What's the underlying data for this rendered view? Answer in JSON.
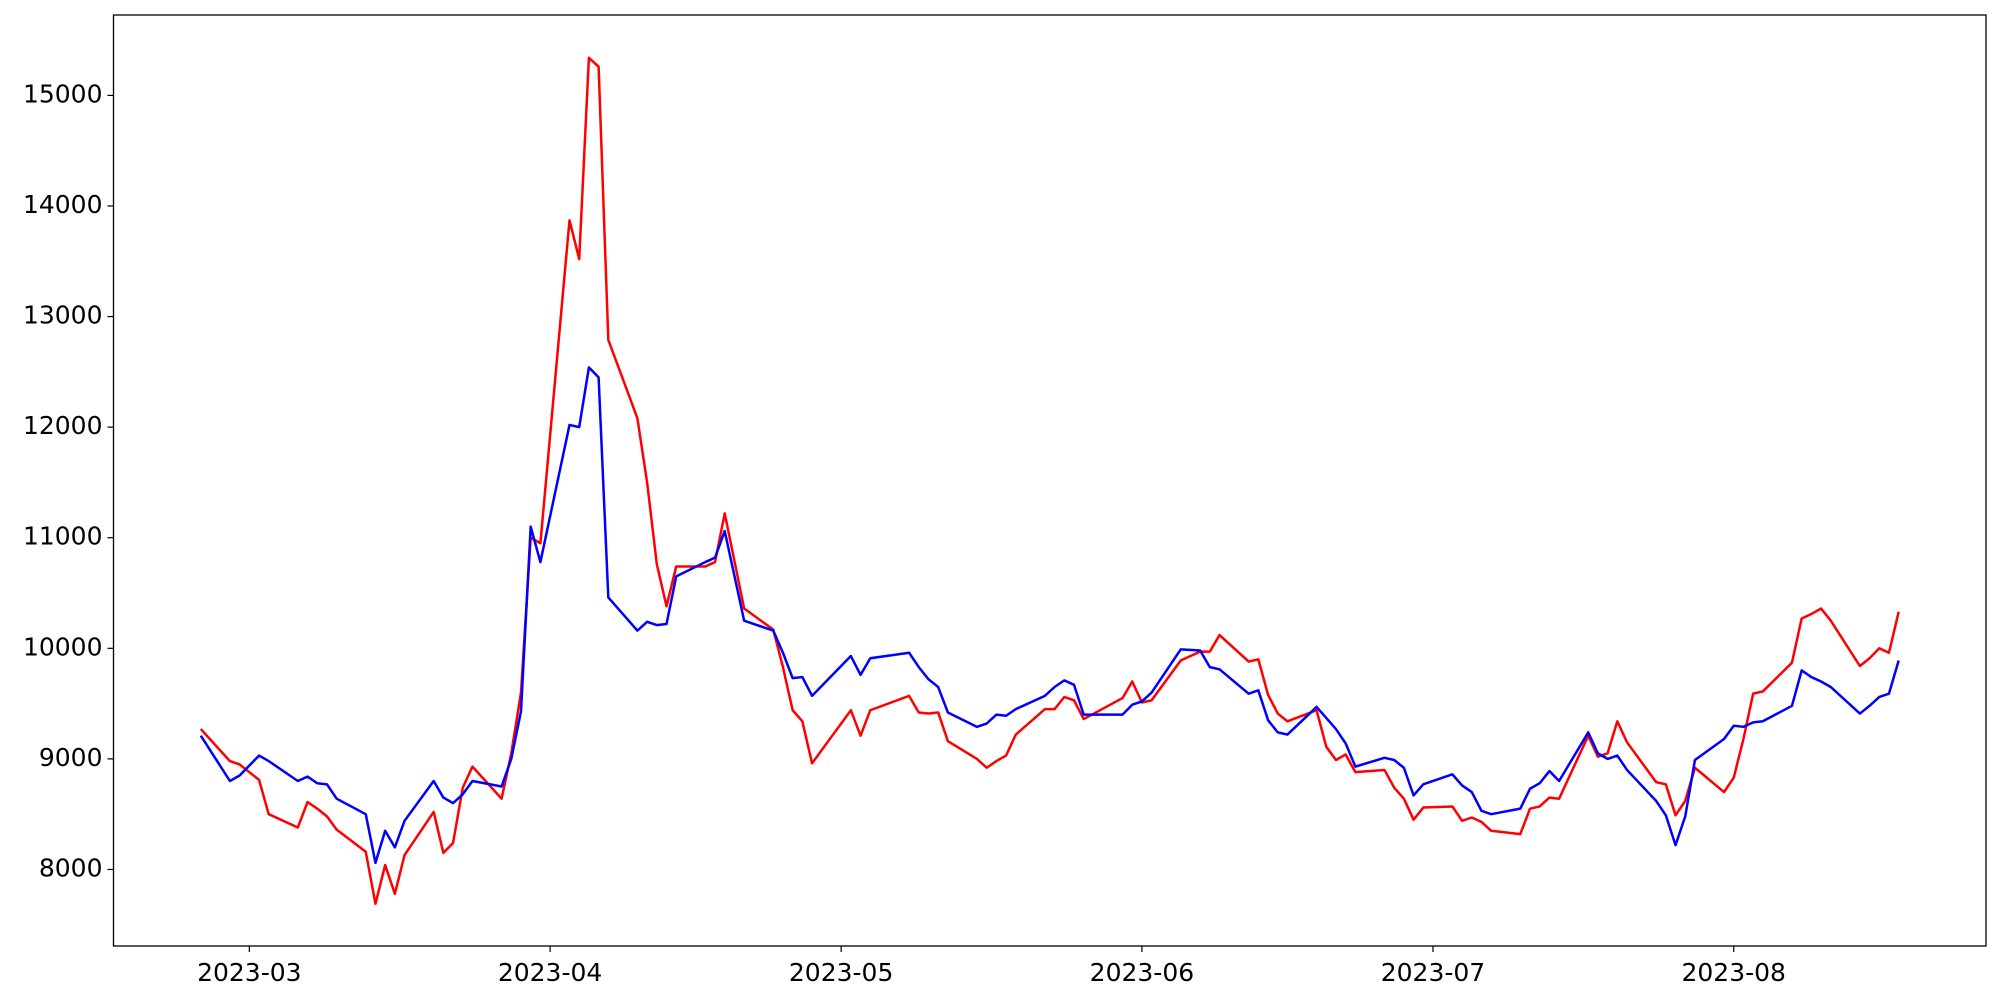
{
  "chart_data": {
    "type": "line",
    "x": [
      "2023-02-24",
      "2023-02-27",
      "2023-02-28",
      "2023-03-02",
      "2023-03-03",
      "2023-03-06",
      "2023-03-07",
      "2023-03-08",
      "2023-03-09",
      "2023-03-10",
      "2023-03-13",
      "2023-03-14",
      "2023-03-15",
      "2023-03-16",
      "2023-03-17",
      "2023-03-20",
      "2023-03-21",
      "2023-03-22",
      "2023-03-23",
      "2023-03-24",
      "2023-03-27",
      "2023-03-28",
      "2023-03-29",
      "2023-03-30",
      "2023-03-31",
      "2023-04-03",
      "2023-04-04",
      "2023-04-05",
      "2023-04-06",
      "2023-04-07",
      "2023-04-10",
      "2023-04-11",
      "2023-04-12",
      "2023-04-13",
      "2023-04-14",
      "2023-04-17",
      "2023-04-18",
      "2023-04-19",
      "2023-04-21",
      "2023-04-24",
      "2023-04-25",
      "2023-04-26",
      "2023-04-27",
      "2023-04-28",
      "2023-05-02",
      "2023-05-03",
      "2023-05-04",
      "2023-05-08",
      "2023-05-09",
      "2023-05-10",
      "2023-05-11",
      "2023-05-12",
      "2023-05-15",
      "2023-05-16",
      "2023-05-17",
      "2023-05-18",
      "2023-05-19",
      "2023-05-22",
      "2023-05-23",
      "2023-05-24",
      "2023-05-25",
      "2023-05-26",
      "2023-05-30",
      "2023-05-31",
      "2023-06-01",
      "2023-06-02",
      "2023-06-05",
      "2023-06-07",
      "2023-06-08",
      "2023-06-09",
      "2023-06-12",
      "2023-06-13",
      "2023-06-14",
      "2023-06-15",
      "2023-06-16",
      "2023-06-19",
      "2023-06-20",
      "2023-06-21",
      "2023-06-22",
      "2023-06-23",
      "2023-06-26",
      "2023-06-27",
      "2023-06-28",
      "2023-06-29",
      "2023-06-30",
      "2023-07-03",
      "2023-07-04",
      "2023-07-05",
      "2023-07-06",
      "2023-07-07",
      "2023-07-10",
      "2023-07-11",
      "2023-07-12",
      "2023-07-13",
      "2023-07-14",
      "2023-07-17",
      "2023-07-18",
      "2023-07-19",
      "2023-07-20",
      "2023-07-21",
      "2023-07-24",
      "2023-07-25",
      "2023-07-26",
      "2023-07-27",
      "2023-07-28",
      "2023-07-31",
      "2023-08-01",
      "2023-08-02",
      "2023-08-03",
      "2023-08-04",
      "2023-08-07",
      "2023-08-08",
      "2023-08-09",
      "2023-08-10",
      "2023-08-11",
      "2023-08-14",
      "2023-08-15",
      "2023-08-16",
      "2023-08-17",
      "2023-08-18"
    ],
    "series": [
      {
        "color": "#ff0000",
        "values": [
          9270,
          8980,
          8950,
          8810,
          8500,
          8380,
          8610,
          8550,
          8480,
          8360,
          8160,
          7690,
          8040,
          7780,
          8130,
          8520,
          8150,
          8240,
          8740,
          8930,
          8640,
          9050,
          9600,
          11000,
          10950,
          13870,
          13520,
          15340,
          15260,
          12790,
          12080,
          11500,
          10760,
          10380,
          10740,
          10740,
          10780,
          11220,
          10360,
          10170,
          9830,
          9440,
          9340,
          8960,
          9440,
          9210,
          9440,
          9570,
          9420,
          9410,
          9420,
          9160,
          9000,
          8920,
          8980,
          9030,
          9220,
          9450,
          9450,
          9560,
          9530,
          9360,
          9550,
          9700,
          9510,
          9530,
          9890,
          9970,
          9970,
          10120,
          9880,
          9900,
          9580,
          9410,
          9340,
          9440,
          9110,
          8990,
          9040,
          8880,
          8900,
          8740,
          8640,
          8450,
          8560,
          8570,
          8440,
          8470,
          8430,
          8350,
          8320,
          8550,
          8570,
          8650,
          8640,
          9210,
          9020,
          9050,
          9340,
          9150,
          8790,
          8770,
          8490,
          8620,
          8920,
          8700,
          8830,
          9180,
          9590,
          9610,
          9870,
          10270,
          10310,
          10360,
          10250,
          9840,
          9910,
          10000,
          9960,
          10330
        ]
      },
      {
        "color": "#0000ff",
        "values": [
          9210,
          8800,
          8850,
          9030,
          8980,
          8800,
          8840,
          8780,
          8770,
          8640,
          8500,
          8060,
          8350,
          8200,
          8440,
          8800,
          8650,
          8600,
          8680,
          8800,
          8750,
          9000,
          9430,
          11100,
          10780,
          12020,
          12000,
          12540,
          12450,
          10460,
          10160,
          10240,
          10210,
          10220,
          10650,
          10780,
          10820,
          11060,
          10250,
          10160,
          9960,
          9730,
          9740,
          9570,
          9930,
          9760,
          9910,
          9960,
          9830,
          9720,
          9650,
          9420,
          9290,
          9320,
          9400,
          9390,
          9450,
          9570,
          9650,
          9710,
          9670,
          9400,
          9400,
          9490,
          9520,
          9600,
          9990,
          9980,
          9830,
          9810,
          9590,
          9620,
          9350,
          9240,
          9220,
          9470,
          9370,
          9270,
          9140,
          8930,
          9010,
          8990,
          8920,
          8670,
          8770,
          8860,
          8760,
          8700,
          8530,
          8500,
          8550,
          8730,
          8780,
          8890,
          8800,
          9240,
          9050,
          9000,
          9030,
          8900,
          8620,
          8490,
          8220,
          8480,
          8990,
          9180,
          9300,
          9290,
          9330,
          9340,
          9480,
          9800,
          9740,
          9700,
          9650,
          9410,
          9480,
          9560,
          9590,
          9890
        ]
      }
    ],
    "xlim": [
      "2023-02-15",
      "2023-08-27"
    ],
    "xticks": [
      {
        "value": "2023-03-01",
        "label": "2023-03"
      },
      {
        "value": "2023-04-01",
        "label": "2023-04"
      },
      {
        "value": "2023-05-01",
        "label": "2023-05"
      },
      {
        "value": "2023-06-01",
        "label": "2023-06"
      },
      {
        "value": "2023-07-01",
        "label": "2023-07"
      },
      {
        "value": "2023-08-01",
        "label": "2023-08"
      }
    ],
    "ylim": [
      7308,
      15727
    ],
    "yticks": [
      8000,
      9000,
      10000,
      11000,
      12000,
      13000,
      14000,
      15000
    ],
    "grid": false
  }
}
